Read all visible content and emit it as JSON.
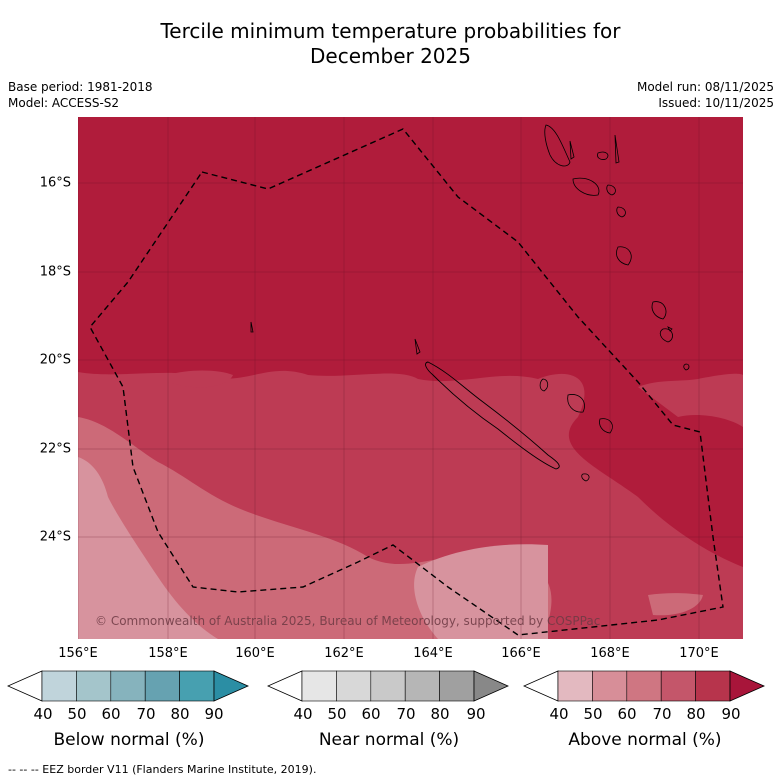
{
  "title": {
    "line1": "Tercile minimum temperature probabilities for",
    "line2": "December 2025"
  },
  "meta": {
    "base_period": "Base period: 1981-2018",
    "model": "Model: ACCESS-S2",
    "model_run": "Model run: 08/11/2025",
    "issued": "Issued: 10/11/2025"
  },
  "map": {
    "lat_labels": [
      "16°S",
      "18°S",
      "20°S",
      "22°S",
      "24°S"
    ],
    "lon_labels": [
      "156°E",
      "158°E",
      "160°E",
      "162°E",
      "164°E",
      "166°E",
      "168°E",
      "170°E"
    ],
    "copyright": "© Commonwealth of Australia 2025, Bureau of Meteorology, supported by COSPPac",
    "dominant_category": "Above normal",
    "probability_bands_percent": {
      "east_and_north": "80-90",
      "central_band": "70-80",
      "southwest": "60-70",
      "far_southwest": "50-60"
    }
  },
  "colorbars": [
    {
      "title": "Below normal (%)",
      "ticks": [
        "40",
        "50",
        "60",
        "70",
        "80",
        "90"
      ],
      "colors": [
        "#ffffff",
        "#c0d4db",
        "#a4c5cb",
        "#86b3bd",
        "#66a2b1",
        "#47a0b0",
        "#2b8ea4"
      ]
    },
    {
      "title": "Near normal (%)",
      "ticks": [
        "40",
        "50",
        "60",
        "70",
        "80",
        "90"
      ],
      "colors": [
        "#ffffff",
        "#e6e6e6",
        "#d8d8d8",
        "#c9c9c9",
        "#b6b6b6",
        "#a0a0a0",
        "#888888"
      ]
    },
    {
      "title": "Above normal (%)",
      "ticks": [
        "40",
        "50",
        "60",
        "70",
        "80",
        "90"
      ],
      "colors": [
        "#ffffff",
        "#e3b9c0",
        "#d78e98",
        "#cf7682",
        "#c4566a",
        "#b7344c",
        "#a8153a"
      ]
    }
  ],
  "legend_note": "--  --  -- EEZ border V11 (Flanders Marine Institute, 2019)."
}
